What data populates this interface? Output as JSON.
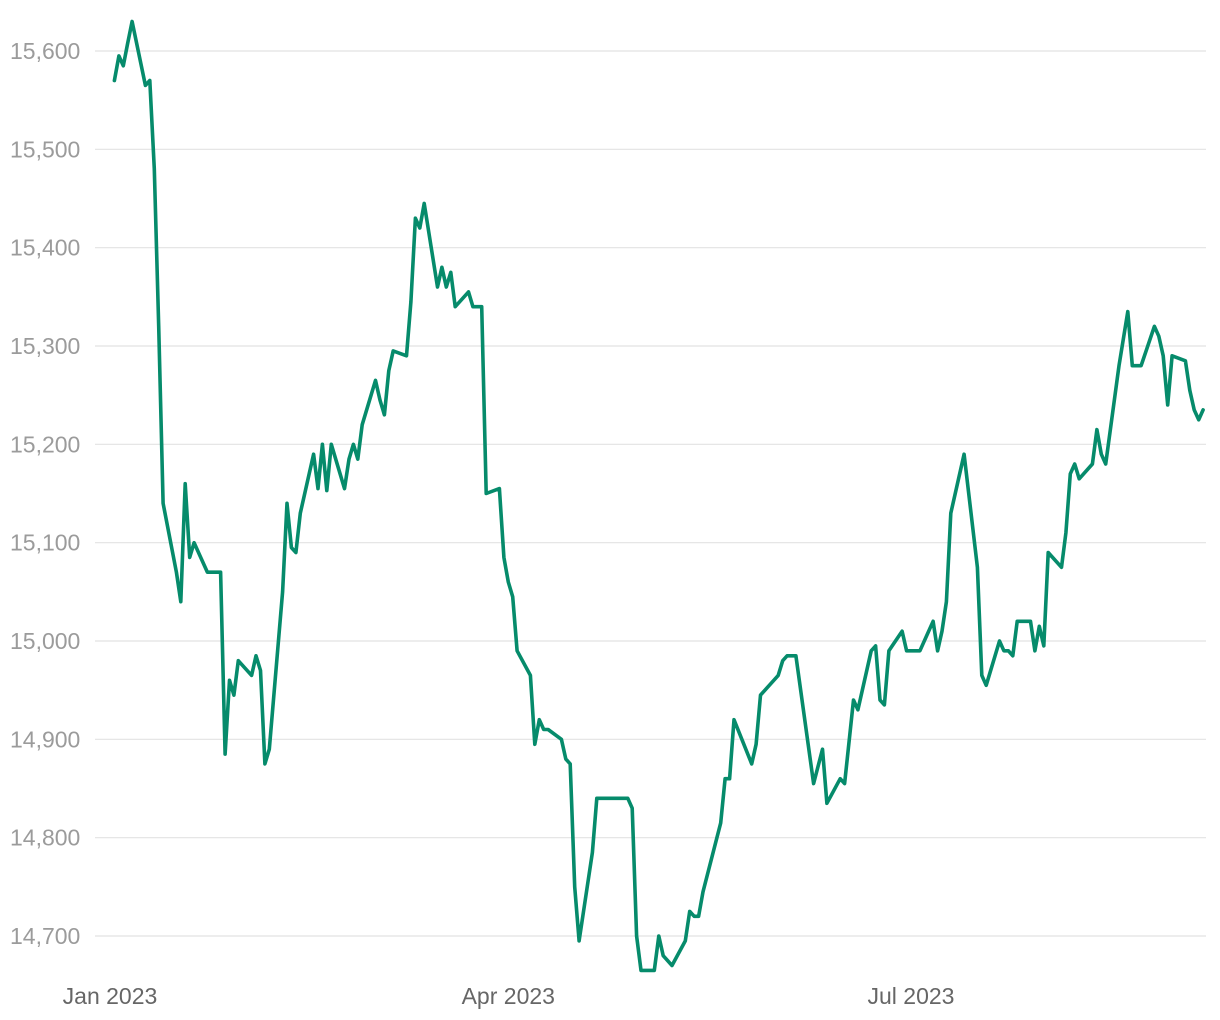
{
  "chart_data": {
    "type": "line",
    "title": "",
    "xlabel": "",
    "ylabel": "",
    "x_range": [
      "2023-01-01",
      "2023-09-11"
    ],
    "ylim": [
      14670,
      15640
    ],
    "y_ticks": [
      {
        "value": 14700,
        "label": "14,700"
      },
      {
        "value": 14800,
        "label": "14,800"
      },
      {
        "value": 14900,
        "label": "14,900"
      },
      {
        "value": 15000,
        "label": "15,000"
      },
      {
        "value": 15100,
        "label": "15,100"
      },
      {
        "value": 15200,
        "label": "15,200"
      },
      {
        "value": 15300,
        "label": "15,300"
      },
      {
        "value": 15400,
        "label": "15,400"
      },
      {
        "value": 15500,
        "label": "15,500"
      },
      {
        "value": 15600,
        "label": "15,600"
      }
    ],
    "x_ticks": [
      {
        "date": "2023-01-01",
        "label": "Jan 2023"
      },
      {
        "date": "2023-04-01",
        "label": "Apr 2023"
      },
      {
        "date": "2023-07-01",
        "label": "Jul 2023"
      }
    ],
    "grid": true,
    "legend": "none",
    "line_color": "#068b6b",
    "series": [
      {
        "points": [
          [
            "2023-01-02",
            15570
          ],
          [
            "2023-01-03",
            15595
          ],
          [
            "2023-01-04",
            15585
          ],
          [
            "2023-01-05",
            15608
          ],
          [
            "2023-01-06",
            15630
          ],
          [
            "2023-01-09",
            15565
          ],
          [
            "2023-01-10",
            15570
          ],
          [
            "2023-01-11",
            15480
          ],
          [
            "2023-01-12",
            15320
          ],
          [
            "2023-01-13",
            15140
          ],
          [
            "2023-01-16",
            15070
          ],
          [
            "2023-01-17",
            15040
          ],
          [
            "2023-01-18",
            15160
          ],
          [
            "2023-01-19",
            15085
          ],
          [
            "2023-01-20",
            15100
          ],
          [
            "2023-01-23",
            15070
          ],
          [
            "2023-01-26",
            15070
          ],
          [
            "2023-01-27",
            14885
          ],
          [
            "2023-01-28",
            14960
          ],
          [
            "2023-01-29",
            14945
          ],
          [
            "2023-01-30",
            14980
          ],
          [
            "2023-02-02",
            14965
          ],
          [
            "2023-02-03",
            14985
          ],
          [
            "2023-02-04",
            14970
          ],
          [
            "2023-02-05",
            14875
          ],
          [
            "2023-02-06",
            14890
          ],
          [
            "2023-02-09",
            15050
          ],
          [
            "2023-02-10",
            15140
          ],
          [
            "2023-02-11",
            15095
          ],
          [
            "2023-02-12",
            15090
          ],
          [
            "2023-02-13",
            15130
          ],
          [
            "2023-02-16",
            15190
          ],
          [
            "2023-02-17",
            15155
          ],
          [
            "2023-02-18",
            15200
          ],
          [
            "2023-02-19",
            15153
          ],
          [
            "2023-02-20",
            15200
          ],
          [
            "2023-02-23",
            15155
          ],
          [
            "2023-02-24",
            15185
          ],
          [
            "2023-02-25",
            15200
          ],
          [
            "2023-02-26",
            15185
          ],
          [
            "2023-02-27",
            15220
          ],
          [
            "2023-03-02",
            15265
          ],
          [
            "2023-03-03",
            15245
          ],
          [
            "2023-03-04",
            15230
          ],
          [
            "2023-03-05",
            15275
          ],
          [
            "2023-03-06",
            15295
          ],
          [
            "2023-03-09",
            15290
          ],
          [
            "2023-03-10",
            15345
          ],
          [
            "2023-03-11",
            15430
          ],
          [
            "2023-03-12",
            15420
          ],
          [
            "2023-03-13",
            15445
          ],
          [
            "2023-03-16",
            15360
          ],
          [
            "2023-03-17",
            15380
          ],
          [
            "2023-03-18",
            15360
          ],
          [
            "2023-03-19",
            15375
          ],
          [
            "2023-03-20",
            15340
          ],
          [
            "2023-03-23",
            15355
          ],
          [
            "2023-03-24",
            15340
          ],
          [
            "2023-03-26",
            15340
          ],
          [
            "2023-03-27",
            15150
          ],
          [
            "2023-03-30",
            15155
          ],
          [
            "2023-03-31",
            15085
          ],
          [
            "2023-04-01",
            15060
          ],
          [
            "2023-04-02",
            15045
          ],
          [
            "2023-04-03",
            14990
          ],
          [
            "2023-04-06",
            14965
          ],
          [
            "2023-04-07",
            14895
          ],
          [
            "2023-04-08",
            14920
          ],
          [
            "2023-04-09",
            14910
          ],
          [
            "2023-04-10",
            14910
          ],
          [
            "2023-04-13",
            14900
          ],
          [
            "2023-04-14",
            14880
          ],
          [
            "2023-04-15",
            14875
          ],
          [
            "2023-04-16",
            14750
          ],
          [
            "2023-04-17",
            14695
          ],
          [
            "2023-04-20",
            14785
          ],
          [
            "2023-04-21",
            14840
          ],
          [
            "2023-04-28",
            14840
          ],
          [
            "2023-04-29",
            14830
          ],
          [
            "2023-04-30",
            14700
          ],
          [
            "2023-05-01",
            14665
          ],
          [
            "2023-05-04",
            14665
          ],
          [
            "2023-05-05",
            14700
          ],
          [
            "2023-05-06",
            14680
          ],
          [
            "2023-05-08",
            14670
          ],
          [
            "2023-05-11",
            14695
          ],
          [
            "2023-05-12",
            14725
          ],
          [
            "2023-05-13",
            14720
          ],
          [
            "2023-05-14",
            14720
          ],
          [
            "2023-05-15",
            14745
          ],
          [
            "2023-05-19",
            14815
          ],
          [
            "2023-05-20",
            14860
          ],
          [
            "2023-05-21",
            14860
          ],
          [
            "2023-05-22",
            14920
          ],
          [
            "2023-05-26",
            14875
          ],
          [
            "2023-05-27",
            14895
          ],
          [
            "2023-05-28",
            14945
          ],
          [
            "2023-06-01",
            14965
          ],
          [
            "2023-06-02",
            14980
          ],
          [
            "2023-06-03",
            14985
          ],
          [
            "2023-06-05",
            14985
          ],
          [
            "2023-06-09",
            14855
          ],
          [
            "2023-06-11",
            14890
          ],
          [
            "2023-06-12",
            14835
          ],
          [
            "2023-06-15",
            14860
          ],
          [
            "2023-06-16",
            14855
          ],
          [
            "2023-06-18",
            14940
          ],
          [
            "2023-06-19",
            14930
          ],
          [
            "2023-06-22",
            14990
          ],
          [
            "2023-06-23",
            14995
          ],
          [
            "2023-06-24",
            14940
          ],
          [
            "2023-06-25",
            14935
          ],
          [
            "2023-06-26",
            14990
          ],
          [
            "2023-06-29",
            15010
          ],
          [
            "2023-06-30",
            14990
          ],
          [
            "2023-07-03",
            14990
          ],
          [
            "2023-07-06",
            15020
          ],
          [
            "2023-07-07",
            14990
          ],
          [
            "2023-07-08",
            15010
          ],
          [
            "2023-07-09",
            15040
          ],
          [
            "2023-07-10",
            15130
          ],
          [
            "2023-07-13",
            15190
          ],
          [
            "2023-07-16",
            15075
          ],
          [
            "2023-07-17",
            14965
          ],
          [
            "2023-07-18",
            14955
          ],
          [
            "2023-07-21",
            15000
          ],
          [
            "2023-07-22",
            14990
          ],
          [
            "2023-07-23",
            14990
          ],
          [
            "2023-07-24",
            14985
          ],
          [
            "2023-07-25",
            15020
          ],
          [
            "2023-07-28",
            15020
          ],
          [
            "2023-07-29",
            14990
          ],
          [
            "2023-07-30",
            15015
          ],
          [
            "2023-07-31",
            14995
          ],
          [
            "2023-08-01",
            15090
          ],
          [
            "2023-08-04",
            15075
          ],
          [
            "2023-08-05",
            15110
          ],
          [
            "2023-08-06",
            15170
          ],
          [
            "2023-08-07",
            15180
          ],
          [
            "2023-08-08",
            15165
          ],
          [
            "2023-08-11",
            15180
          ],
          [
            "2023-08-12",
            15215
          ],
          [
            "2023-08-13",
            15190
          ],
          [
            "2023-08-14",
            15180
          ],
          [
            "2023-08-17",
            15280
          ],
          [
            "2023-08-19",
            15335
          ],
          [
            "2023-08-20",
            15280
          ],
          [
            "2023-08-22",
            15280
          ],
          [
            "2023-08-25",
            15320
          ],
          [
            "2023-08-26",
            15310
          ],
          [
            "2023-08-27",
            15290
          ],
          [
            "2023-08-28",
            15240
          ],
          [
            "2023-08-29",
            15290
          ],
          [
            "2023-09-01",
            15285
          ],
          [
            "2023-09-02",
            15255
          ],
          [
            "2023-09-03",
            15235
          ],
          [
            "2023-09-04",
            15225
          ],
          [
            "2023-09-05",
            15235
          ]
        ]
      }
    ]
  }
}
